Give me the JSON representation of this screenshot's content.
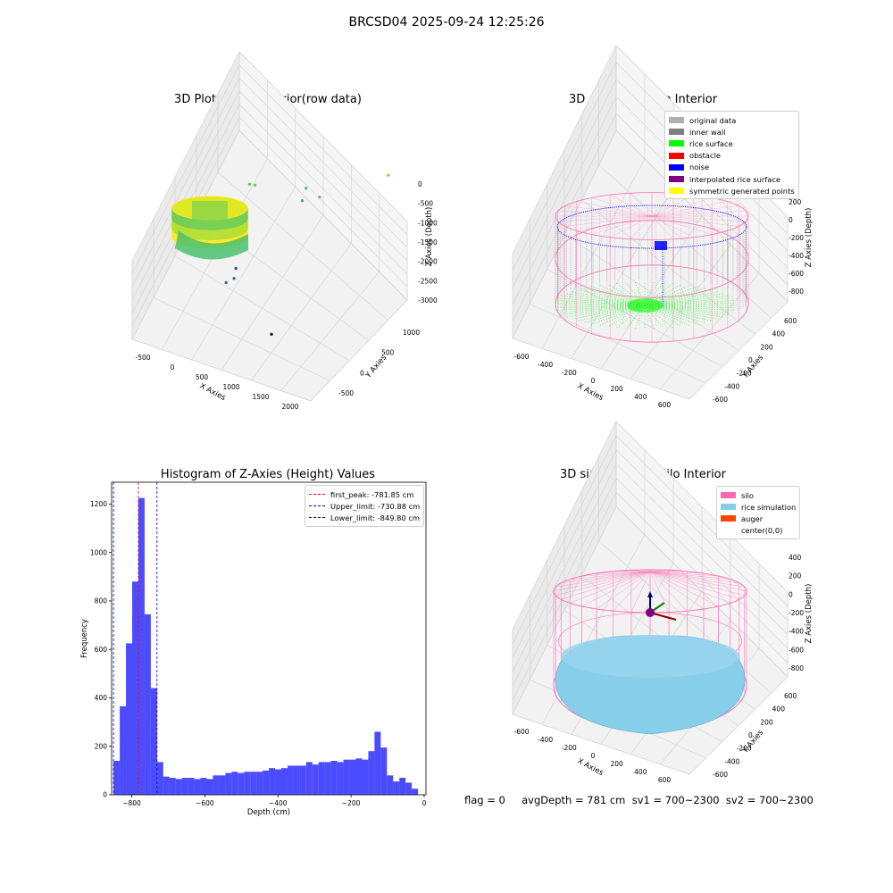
{
  "figure": {
    "suptitle": "BRCSD04 2025-09-24 12:25:26",
    "status_line": "flag = 0     avgDepth = 781 cm  sv1 = 700~2300  sv2 = 700~2300"
  },
  "colors": {
    "silo_pink": "#ff69b4",
    "rice_sky": "#87ceeb",
    "auger_orange": "#ff4500",
    "hist_blue": "#0000ff",
    "peak_red": "#ff0000"
  },
  "chart_data": [
    {
      "id": "raw",
      "type": "scatter3d",
      "title": "3D Plot of Silo Interior(row data)",
      "xlabel": "X Axies",
      "ylabel": "Y Axies",
      "zlabel": "Z Axies (Depth)",
      "x_ticks": [
        "-500",
        "0",
        "500",
        "1000",
        "1500",
        "2000"
      ],
      "y_ticks": [
        "-500",
        "0",
        "500",
        "1000"
      ],
      "z_ticks": [
        "0",
        "-500",
        "-1000",
        "-1500",
        "-2000",
        "-2500",
        "-3000"
      ],
      "colormap": "viridis",
      "outlier_points": [
        {
          "x": 200,
          "y": 500,
          "z": -1100
        },
        {
          "x": 250,
          "y": 550,
          "z": -1300
        },
        {
          "x": 900,
          "y": 700,
          "z": -2000
        },
        {
          "x": 1100,
          "y": 800,
          "z": -2100
        },
        {
          "x": 800,
          "y": 900,
          "z": -2400
        },
        {
          "x": 300,
          "y": -100,
          "z": -2500
        },
        {
          "x": 350,
          "y": 0,
          "z": -2700
        },
        {
          "x": 300,
          "y": 100,
          "z": -2750
        },
        {
          "x": 1900,
          "y": 1200,
          "z": -2200
        },
        {
          "x": 1200,
          "y": -300,
          "z": -3000
        }
      ]
    },
    {
      "id": "classify",
      "type": "scatter3d",
      "title": "3D classify of Silo Interior",
      "xlabel": "X Axies",
      "ylabel": "Y Axies",
      "zlabel": "Z Axies (Depth)",
      "x_ticks": [
        "-600",
        "-400",
        "-200",
        "0",
        "200",
        "400",
        "600"
      ],
      "y_ticks": [
        "-600",
        "-400",
        "-200",
        "0",
        "200",
        "400",
        "600"
      ],
      "z_ticks": [
        "200",
        "0",
        "-200",
        "-400",
        "-600",
        "-800"
      ],
      "legend": [
        {
          "label": "original data",
          "color": "#b0b0b0"
        },
        {
          "label": "inner wall",
          "color": "#808080"
        },
        {
          "label": "rice surface",
          "color": "#00ff00"
        },
        {
          "label": "obstacle",
          "color": "#ff0000"
        },
        {
          "label": "noise",
          "color": "#0000ff"
        },
        {
          "label": "interpolated rice surface",
          "color": "#800080"
        },
        {
          "label": "symmetric generated points",
          "color": "#ffff00"
        }
      ]
    },
    {
      "id": "hist",
      "type": "bar",
      "title": "Histogram of Z-Axies (Height) Values",
      "xlabel": "Depth (cm)",
      "ylabel": "Frequency",
      "xlim": [
        -855,
        5
      ],
      "ylim": [
        0,
        1290
      ],
      "x_ticks": [
        -800,
        -600,
        -400,
        -200,
        0
      ],
      "y_ticks": [
        0,
        200,
        400,
        600,
        800,
        1000,
        1200
      ],
      "bin_start": -849.8,
      "bin_width": 17.0,
      "values": [
        140,
        365,
        625,
        880,
        1225,
        745,
        440,
        135,
        75,
        70,
        65,
        70,
        70,
        65,
        70,
        65,
        80,
        80,
        90,
        95,
        90,
        95,
        95,
        95,
        100,
        110,
        105,
        110,
        120,
        120,
        120,
        135,
        125,
        135,
        135,
        140,
        135,
        145,
        145,
        150,
        145,
        180,
        260,
        195,
        80,
        55,
        70,
        50,
        25
      ],
      "vlines": [
        {
          "label": "first_peak: -781.85 cm",
          "x": -781.85,
          "color": "#ff0000"
        },
        {
          "label": "Upper_limit: -730.88 cm",
          "x": -730.88,
          "color": "#0000ff"
        },
        {
          "label": "Lower_limit: -849.80 cm",
          "x": -849.8,
          "color": "#0000ff"
        }
      ]
    },
    {
      "id": "sim",
      "type": "surface3d",
      "title": "3D simulation of Silo Interior",
      "xlabel": "X Axies",
      "ylabel": "Y Axies",
      "zlabel": "Z Axies (Depth)",
      "x_ticks": [
        "-600",
        "-400",
        "-200",
        "0",
        "200",
        "400",
        "600"
      ],
      "y_ticks": [
        "-600",
        "-400",
        "-200",
        "0",
        "200",
        "400",
        "600"
      ],
      "z_ticks": [
        "400",
        "200",
        "0",
        "-200",
        "-400",
        "-600",
        "-800"
      ],
      "legend": [
        {
          "label": "silo",
          "color": "#ff69b4"
        },
        {
          "label": "rice simulation",
          "color": "#87ceeb"
        },
        {
          "label": "auger",
          "color": "#ff4500"
        },
        {
          "label": "center(0,0)",
          "color": ""
        }
      ]
    }
  ]
}
